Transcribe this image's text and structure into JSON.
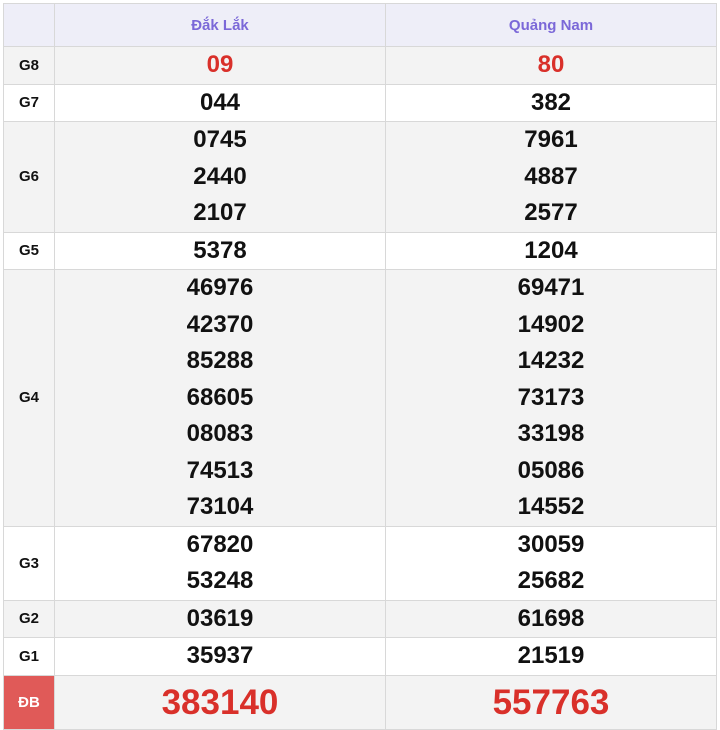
{
  "provinces": [
    "Đắk Lắk",
    "Quảng Nam"
  ],
  "rows": [
    {
      "label": "G8",
      "a": [
        "09"
      ],
      "b": [
        "80"
      ]
    },
    {
      "label": "G7",
      "a": [
        "044"
      ],
      "b": [
        "382"
      ]
    },
    {
      "label": "G6",
      "a": [
        "0745",
        "2440",
        "2107"
      ],
      "b": [
        "7961",
        "4887",
        "2577"
      ]
    },
    {
      "label": "G5",
      "a": [
        "5378"
      ],
      "b": [
        "1204"
      ]
    },
    {
      "label": "G4",
      "a": [
        "46976",
        "42370",
        "85288",
        "68605",
        "08083",
        "74513",
        "73104"
      ],
      "b": [
        "69471",
        "14902",
        "14232",
        "73173",
        "33198",
        "05086",
        "14552"
      ]
    },
    {
      "label": "G3",
      "a": [
        "67820",
        "53248"
      ],
      "b": [
        "30059",
        "25682"
      ]
    },
    {
      "label": "G2",
      "a": [
        "03619"
      ],
      "b": [
        "61698"
      ]
    },
    {
      "label": "G1",
      "a": [
        "35937"
      ],
      "b": [
        "21519"
      ]
    },
    {
      "label": "ĐB",
      "a": [
        "383140"
      ],
      "b": [
        "557763"
      ]
    }
  ],
  "colors": {
    "header_text": "#7b68d8",
    "highlight": "#d9302a",
    "special_label_bg": "#e05a58"
  }
}
